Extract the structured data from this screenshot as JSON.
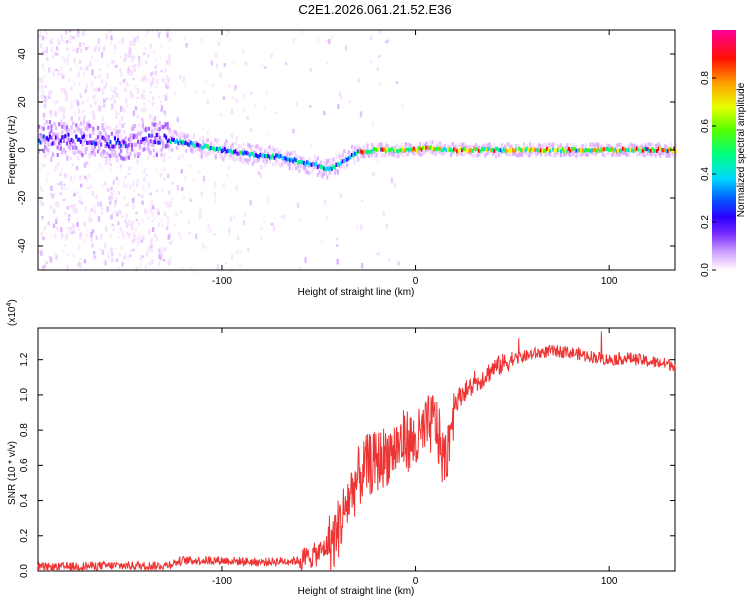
{
  "chart_data": [
    {
      "type": "heatmap",
      "title": "C2E1.2026.061.21.52.E36",
      "xlabel": "Height of straight line (km)",
      "ylabel": "Frequency (Hz)",
      "xlim": [
        -195,
        134
      ],
      "ylim": [
        -50,
        50
      ],
      "xticks": [
        -100,
        0,
        100
      ],
      "xtick_labels": [
        "-100",
        "0",
        "100"
      ],
      "yticks": [
        -40,
        -20,
        0,
        20,
        40
      ],
      "ytick_labels": [
        "-40",
        "-20",
        "0",
        "20",
        "40"
      ],
      "colorbar": {
        "label": "Normalized spectral amplitude",
        "range": [
          0,
          1
        ],
        "ticks": [
          0.0,
          0.2,
          0.4,
          0.6,
          0.8
        ],
        "tick_labels": [
          "0.0",
          "0.2",
          "0.4",
          "0.6",
          "0.8"
        ]
      },
      "ridge": {
        "x": [
          -195,
          -170,
          -150,
          -135,
          -120,
          -100,
          -85,
          -70,
          -60,
          -50,
          -45,
          -40,
          -35,
          -30,
          -20,
          -10,
          0,
          5,
          20,
          60,
          100,
          134
        ],
        "y": [
          5,
          4,
          3,
          5,
          3,
          0,
          -2,
          -3,
          -5,
          -7,
          -8,
          -6,
          -3,
          -1,
          0,
          0,
          0,
          1,
          0,
          0,
          0,
          0
        ]
      },
      "colormap": [
        "#ffffff",
        "#f4d9ff",
        "#d8a6ff",
        "#9a45ff",
        "#3a00ff",
        "#0050ff",
        "#00d0ff",
        "#00ff80",
        "#40ff00",
        "#ffff00",
        "#ff9000",
        "#ff0000",
        "#ff0090"
      ]
    },
    {
      "type": "line",
      "xlabel": "Height of straight line (km)",
      "ylabel": "SNR (10 * v/v)",
      "scale_label": "(x10",
      "scale_exponent": "4",
      "scale_suffix": ")",
      "xlim": [
        -195,
        134
      ],
      "ylim": [
        0,
        1.38
      ],
      "xticks": [
        -100,
        0,
        100
      ],
      "xtick_labels": [
        "-100",
        "0",
        "100"
      ],
      "yticks": [
        0.0,
        0.2,
        0.4,
        0.6,
        0.8,
        1.0,
        1.2
      ],
      "ytick_labels": [
        "0.0",
        "0.2",
        "0.4",
        "0.6",
        "0.8",
        "1.0",
        "1.2"
      ],
      "series": [
        {
          "name": "SNR",
          "color": "#ee3333",
          "x": [
            -195,
            -160,
            -130,
            -120,
            -100,
            -80,
            -60,
            -50,
            -42,
            -38,
            -35,
            -30,
            -25,
            -20,
            -15,
            -10,
            -5,
            0,
            5,
            10,
            15,
            20,
            25,
            30,
            40,
            50,
            60,
            70,
            80,
            90,
            100,
            110,
            120,
            134
          ],
          "values": [
            0.02,
            0.03,
            0.03,
            0.06,
            0.06,
            0.05,
            0.06,
            0.1,
            0.18,
            0.3,
            0.4,
            0.52,
            0.6,
            0.62,
            0.66,
            0.7,
            0.75,
            0.72,
            0.8,
            0.86,
            0.6,
            0.95,
            1.02,
            1.05,
            1.15,
            1.2,
            1.23,
            1.25,
            1.24,
            1.22,
            1.2,
            1.21,
            1.19,
            1.17
          ]
        }
      ]
    }
  ]
}
